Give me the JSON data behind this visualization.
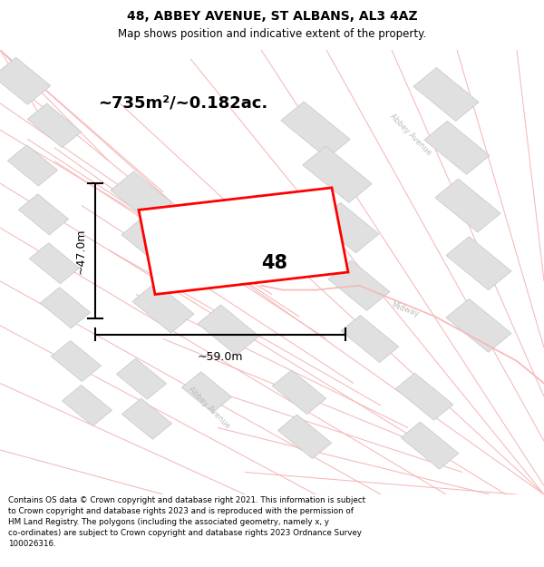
{
  "title_line1": "48, ABBEY AVENUE, ST ALBANS, AL3 4AZ",
  "title_line2": "Map shows position and indicative extent of the property.",
  "area_text": "~735m²/~0.182ac.",
  "label_number": "48",
  "dim_width": "~59.0m",
  "dim_height": "~47.0m",
  "footer_text": "Contains OS data © Crown copyright and database right 2021. This information is subject to Crown copyright and database rights 2023 and is reproduced with the permission of HM Land Registry. The polygons (including the associated geometry, namely x, y co-ordinates) are subject to Crown copyright and database rights 2023 Ordnance Survey 100026316.",
  "bg_color": "#ffffff",
  "map_bg_color": "#ffffff",
  "plot_color": "#ff0000",
  "road_color": "#f5b8b8",
  "building_color": "#e0e0e0",
  "building_edge_color": "#cccccc",
  "street_label_color": "#bbbbbb",
  "title_color": "#000000",
  "footer_color": "#000000"
}
